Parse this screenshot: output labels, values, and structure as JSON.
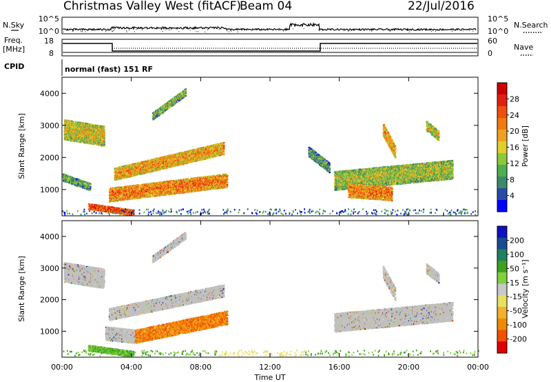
{
  "header": {
    "station": "Christmas Valley West (fitACF)",
    "beam": "Beam 04",
    "date": "22/Jul/2016"
  },
  "side_labels": {
    "nsky": "N.Sky",
    "freq_line1": "Freq.",
    "freq_line2": "[MHz]",
    "cpid": "CPID",
    "nsearch": "N.Search",
    "nave": "Nave"
  },
  "cpid_text": "normal (fast) 151 RF",
  "noise_panel": {
    "left_ticks": [
      "10^5",
      "10^0"
    ],
    "right_ticks": [
      "10^5",
      "10^0"
    ]
  },
  "freq_panel": {
    "left_ticks": [
      "18",
      "8"
    ],
    "right_ticks": [
      "60",
      "0"
    ]
  },
  "colors": {
    "power_scale": [
      "#0000ff",
      "#2a4aa8",
      "#3c8a6a",
      "#4fae4f",
      "#8cc83c",
      "#e0d02a",
      "#f0a020",
      "#f07a10",
      "#ee5010",
      "#e02010",
      "#cc0000"
    ],
    "velocity_scale": [
      "#e00000",
      "#f05000",
      "#f08a00",
      "#f0b030",
      "#e8e060",
      "#c8c8c8",
      "#80d040",
      "#40a020",
      "#208060",
      "#1a4a90",
      "#1010c0"
    ],
    "ground_scatter": "#c0c0c0"
  },
  "chart_data": [
    {
      "type": "heatmap",
      "name": "power",
      "ylabel": "Slant Range [km]",
      "xlabel": "",
      "colorbar_label": "Power [dB]",
      "colorbar_ticks": [
        "28",
        "24",
        "20",
        "16",
        "12",
        "8",
        "4"
      ],
      "xlim": [
        0,
        24
      ],
      "ylim": [
        180,
        4500
      ],
      "y_ticks": [
        1000,
        2000,
        3000,
        4000
      ],
      "x_tick_hours": [
        0,
        4,
        8,
        12,
        16,
        20,
        24
      ],
      "scatter_regions": [
        {
          "t0": 0.1,
          "t1": 2.4,
          "r_mid0": 2900,
          "r_mid1": 2700,
          "width": 650,
          "p": 16
        },
        {
          "t0": 3.0,
          "t1": 9.3,
          "r_mid0": 1500,
          "r_mid1": 2300,
          "width": 380,
          "p": 20
        },
        {
          "t0": 2.7,
          "t1": 9.5,
          "r_mid0": 850,
          "r_mid1": 1300,
          "width": 420,
          "p": 22
        },
        {
          "t0": 1.5,
          "t1": 4.1,
          "r_mid0": 500,
          "r_mid1": 300,
          "width": 200,
          "p": 26
        },
        {
          "t0": 5.2,
          "t1": 7.1,
          "r_mid0": 3300,
          "r_mid1": 4050,
          "width": 220,
          "p": 12
        },
        {
          "t0": 0.0,
          "t1": 1.6,
          "r_mid0": 1400,
          "r_mid1": 1100,
          "width": 220,
          "p": 10
        },
        {
          "t0": 15.7,
          "t1": 22.5,
          "r_mid0": 1300,
          "r_mid1": 1650,
          "width": 600,
          "p": 14
        },
        {
          "t0": 16.5,
          "t1": 19.0,
          "r_mid0": 1000,
          "r_mid1": 900,
          "width": 450,
          "p": 22
        },
        {
          "t0": 18.5,
          "t1": 19.2,
          "r_mid0": 2900,
          "r_mid1": 2200,
          "width": 400,
          "p": 20
        },
        {
          "t0": 21.0,
          "t1": 21.7,
          "r_mid0": 3000,
          "r_mid1": 2700,
          "width": 300,
          "p": 16
        },
        {
          "t0": 14.2,
          "t1": 15.4,
          "r_mid0": 2200,
          "r_mid1": 1700,
          "width": 300,
          "p": 10
        }
      ]
    },
    {
      "type": "heatmap",
      "name": "velocity",
      "ylabel": "Slant Range [km]",
      "xlabel": "Time UT",
      "colorbar_label": "Velocity [m s⁻¹]",
      "colorbar_ticks": [
        "200",
        "100",
        "50",
        "15",
        "-15",
        "-50",
        "-100",
        "-200"
      ],
      "xlim": [
        0,
        24
      ],
      "ylim": [
        180,
        4500
      ],
      "y_ticks": [
        1000,
        2000,
        3000,
        4000
      ],
      "x_tick_labels": [
        "00:00",
        "04:00",
        "08:00",
        "12:00",
        "16:00",
        "20:00",
        "00:00"
      ],
      "x_tick_hours": [
        0,
        4,
        8,
        12,
        16,
        20,
        24
      ],
      "scatter_regions": [
        {
          "t0": 0.1,
          "t1": 2.4,
          "r_mid0": 2900,
          "r_mid1": 2700,
          "width": 650,
          "v": 0
        },
        {
          "t0": 2.7,
          "t1": 9.3,
          "r_mid0": 1550,
          "r_mid1": 2300,
          "width": 380,
          "v": 0
        },
        {
          "t0": 2.5,
          "t1": 4.2,
          "r_mid0": 950,
          "r_mid1": 850,
          "width": 420,
          "v": 0
        },
        {
          "t0": 4.2,
          "t1": 9.5,
          "r_mid0": 850,
          "r_mid1": 1450,
          "width": 420,
          "v": -70
        },
        {
          "t0": 1.5,
          "t1": 4.1,
          "r_mid0": 500,
          "r_mid1": 300,
          "width": 200,
          "v": 30
        },
        {
          "t0": 5.2,
          "t1": 7.1,
          "r_mid0": 3300,
          "r_mid1": 4050,
          "width": 220,
          "v": 0
        },
        {
          "t0": 15.7,
          "t1": 22.5,
          "r_mid0": 1300,
          "r_mid1": 1650,
          "width": 600,
          "v": 0
        },
        {
          "t0": 18.5,
          "t1": 19.2,
          "r_mid0": 2900,
          "r_mid1": 2200,
          "width": 400,
          "v": 0
        },
        {
          "t0": 21.0,
          "t1": 21.7,
          "r_mid0": 3000,
          "r_mid1": 2700,
          "width": 300,
          "v": 0
        }
      ]
    }
  ]
}
